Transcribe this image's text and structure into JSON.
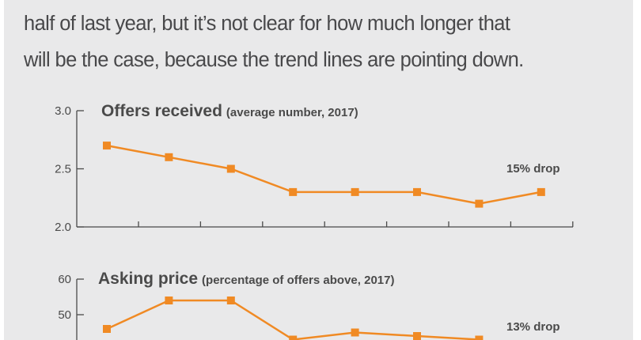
{
  "paragraph": {
    "lines": [
      "half of last year, but it’s not clear for how much longer that",
      "will be the case, because the trend lines are pointing down."
    ]
  },
  "colors": {
    "series": "#f08a24",
    "background": "#e9e9ea",
    "text": "#4a4a4a"
  },
  "chart_data": [
    {
      "type": "line",
      "title": "Offers received",
      "subtitle": "(average number, 2017)",
      "yticks": [
        "2.0",
        "2.5",
        "3.0"
      ],
      "ylim": [
        2.0,
        3.0
      ],
      "values": [
        2.7,
        2.6,
        2.5,
        2.3,
        2.3,
        2.3,
        2.2,
        2.3
      ],
      "annotation": "15% drop",
      "marker": "square"
    },
    {
      "type": "line",
      "title": "Asking price",
      "subtitle": "(percentage of offers above, 2017)",
      "yticks": [
        "50",
        "60"
      ],
      "ylim": [
        40,
        60
      ],
      "values": [
        46,
        54,
        54,
        43,
        45,
        44,
        43
      ],
      "annotation": "13% drop",
      "marker": "square"
    }
  ]
}
